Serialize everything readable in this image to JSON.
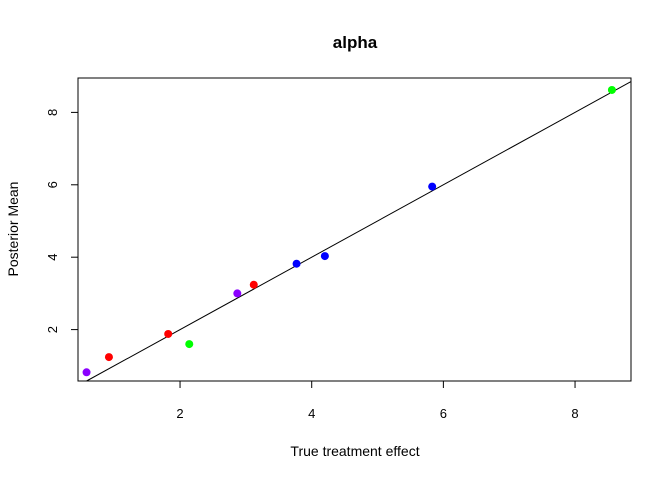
{
  "chart_data": {
    "type": "scatter",
    "title": "alpha",
    "xlabel": "True treatment effect",
    "ylabel": "Posterior Mean",
    "xlim": [
      0.45,
      8.85
    ],
    "ylim": [
      0.58,
      8.95
    ],
    "x_ticks": [
      2,
      4,
      6,
      8
    ],
    "y_ticks": [
      2,
      4,
      6,
      8
    ],
    "grid": false,
    "reference_line": {
      "intercept": 0,
      "slope": 1
    },
    "points": [
      {
        "x": 0.58,
        "y": 0.82,
        "color": "#8b00ff"
      },
      {
        "x": 0.92,
        "y": 1.24,
        "color": "#ff0000"
      },
      {
        "x": 1.82,
        "y": 1.88,
        "color": "#ff0000"
      },
      {
        "x": 2.14,
        "y": 1.6,
        "color": "#00ff00"
      },
      {
        "x": 2.87,
        "y": 3.0,
        "color": "#8b00ff"
      },
      {
        "x": 3.12,
        "y": 3.24,
        "color": "#ff0000"
      },
      {
        "x": 3.77,
        "y": 3.82,
        "color": "#0000ff"
      },
      {
        "x": 4.2,
        "y": 4.03,
        "color": "#0000ff"
      },
      {
        "x": 5.83,
        "y": 5.95,
        "color": "#0000ff"
      },
      {
        "x": 8.56,
        "y": 8.62,
        "color": "#00ff00"
      }
    ]
  }
}
